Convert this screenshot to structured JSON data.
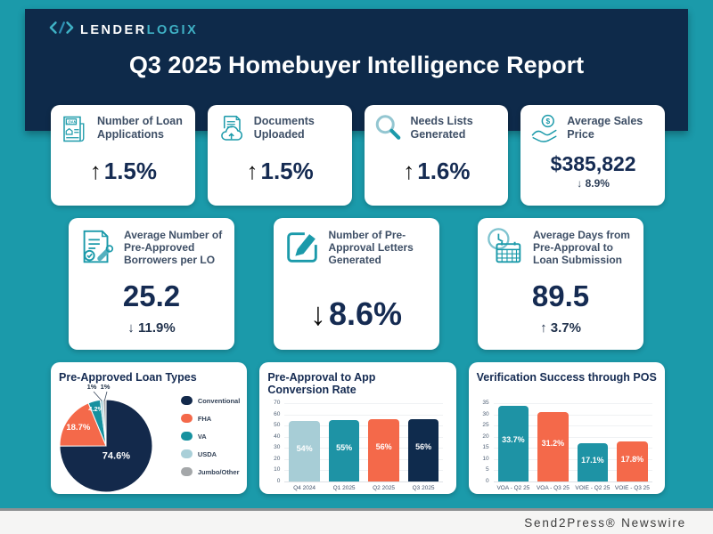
{
  "header": {
    "logo_primary": "Lender",
    "logo_secondary": "Logix",
    "title": "Q3 2025 Homebuyer Intelligence Report"
  },
  "cards_row1": [
    {
      "icon": "loan-application-document",
      "label": "Number of Loan Applications",
      "arrow": "↑",
      "value": "1.5%"
    },
    {
      "icon": "document-cloud-upload",
      "label": "Documents Uploaded",
      "arrow": "↑",
      "value": "1.5%"
    },
    {
      "icon": "magnifying-glass",
      "label": "Needs Lists Generated",
      "arrow": "↑",
      "value": "1.6%"
    },
    {
      "icon": "hand-dollar-coin",
      "label": "Average Sales Price",
      "value": "$385,822",
      "sub_arrow": "↓",
      "sub_value": "8.9%"
    }
  ],
  "cards_row2": [
    {
      "icon": "approved-document-stamp",
      "label": "Average Number of Pre-Approved Borrowers per LO",
      "value": "25.2",
      "sub_arrow": "↓",
      "sub_value": "11.9%"
    },
    {
      "icon": "pencil-letter",
      "label": "Number of Pre-Approval Letters Generated",
      "arrow": "↓",
      "value": "8.6%"
    },
    {
      "icon": "clock-calendar",
      "label": "Average Days from Pre-Approval to Loan Submission",
      "value": "89.5",
      "sub_arrow": "↑",
      "sub_value": "3.7%"
    }
  ],
  "chart_data": [
    {
      "type": "pie",
      "title": "Pre-Approved Loan Types",
      "labels": [
        "Conventional",
        "FHA",
        "VA",
        "USDA",
        "Jumbo/Other"
      ],
      "values": [
        74.6,
        18.7,
        4.2,
        1,
        1
      ],
      "value_labels": [
        "74.6%",
        "18.7%",
        "4.2%",
        "1%",
        "1%"
      ],
      "colors": [
        "#13294b",
        "#f4694a",
        "#16919f",
        "#a9cfd8",
        "#a4a7a9"
      ],
      "legend_position": "right"
    },
    {
      "type": "bar",
      "title": "Pre-Approval to App Conversion Rate",
      "categories": [
        "Q4 2024",
        "Q1 2025",
        "Q2 2025",
        "Q3 2025"
      ],
      "values": [
        54,
        55,
        56,
        56
      ],
      "value_labels": [
        "54%",
        "55%",
        "56%",
        "56%"
      ],
      "bar_colors": [
        "#a7cdd6",
        "#1e93a5",
        "#f4694a",
        "#0f2b4d"
      ],
      "ylabel": "",
      "xlabel": "",
      "ylim": [
        0,
        70
      ],
      "ytick_step": 10,
      "grid": true
    },
    {
      "type": "bar",
      "title": "Verification Success through POS",
      "categories": [
        "VOA - Q2 25",
        "VOA - Q3 25",
        "VOIE - Q2 25",
        "VOIE - Q3 25"
      ],
      "values": [
        33.7,
        31.2,
        17.1,
        17.8
      ],
      "value_labels": [
        "33.7%",
        "31.2%",
        "17.1%",
        "17.8%"
      ],
      "bar_colors": [
        "#1e93a5",
        "#f4694a",
        "#1e93a5",
        "#f4694a"
      ],
      "ylabel": "",
      "xlabel": "",
      "ylim": [
        0,
        35
      ],
      "ytick_step": 5,
      "grid": true
    }
  ],
  "footer": {
    "credit": "Send2Press® Newswire"
  },
  "colors": {
    "background_teal": "#1b9aaa",
    "header_navy": "#0e2a4a",
    "accent_orange": "#f4694a",
    "accent_teal": "#1e93a5",
    "accent_light_teal": "#a7cdd6",
    "navy": "#13294b",
    "icon_teal": "#1b9aaa"
  }
}
